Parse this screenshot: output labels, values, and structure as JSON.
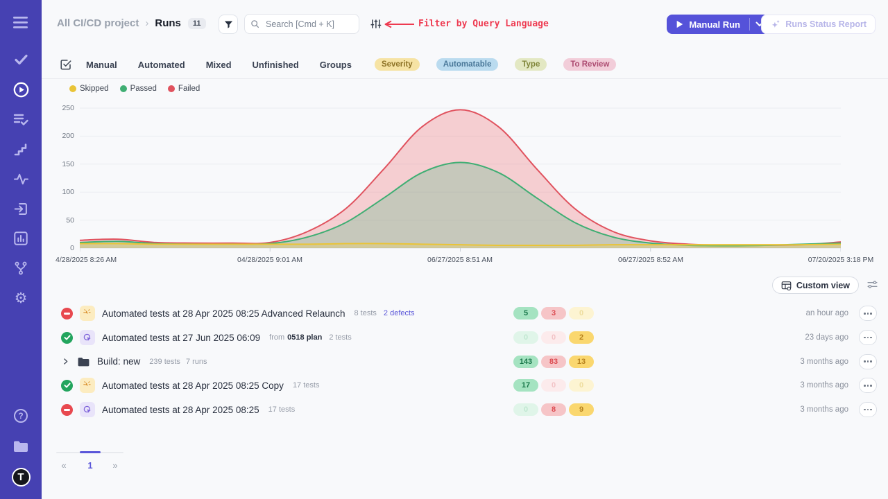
{
  "colors": {
    "sidebar_bg": "#4641b2",
    "accent": "#5552d9",
    "annotation_red": "#ee3a50",
    "passed": "#3fae73",
    "failed": "#e0525e",
    "skipped": "#e9c437"
  },
  "icons": {
    "sidebar": [
      "menu-icon",
      "tests-check-icon",
      "runs-play-circle-icon",
      "plans-list-check-icon",
      "milestones-steps-icon",
      "pulse-activity-icon",
      "import-icon",
      "analytics-bar-chart-icon",
      "git-branch-icon",
      "settings-gear-icon",
      "help-icon",
      "documentation-folder-icon",
      "app-logo"
    ],
    "header": [
      "filter-funnel-icon",
      "search-icon",
      "query-sliders-icon",
      "play-icon",
      "chevron-down-icon",
      "sparkles-icon"
    ],
    "list": [
      "status-failed-icon",
      "status-passed-icon",
      "automated-run-badge-icon",
      "plan-run-badge-icon",
      "folder-icon",
      "chevron-right-icon",
      "more-ellipsis-icon"
    ]
  },
  "sidebar": {
    "help_glyph": "?",
    "logo_glyph": "T",
    "gear_glyph": "⚙"
  },
  "header": {
    "project": "All CI/CD project",
    "separator": "›",
    "page": "Runs",
    "count": "11",
    "search_placeholder": "Search [Cmd + K]",
    "annotation": "Filter by Query Language",
    "manual_run": "Manual Run",
    "report": "Runs Status Report"
  },
  "tabs": {
    "items": [
      "Manual",
      "Automated",
      "Mixed",
      "Unfinished",
      "Groups"
    ],
    "tags": [
      {
        "label": "Severity",
        "bg": "#f6e3a4",
        "color": "#8d7226"
      },
      {
        "label": "Automatable",
        "bg": "#badbef",
        "color": "#4a7899"
      },
      {
        "label": "Type",
        "bg": "#e3e8c3",
        "color": "#7f8539"
      },
      {
        "label": "To Review",
        "bg": "#f2cdd9",
        "color": "#ad4d72"
      }
    ]
  },
  "chart_data": {
    "type": "area",
    "legend_position": "top-left",
    "grid": true,
    "legend": [
      {
        "label": "Skipped",
        "color": "#e9c437"
      },
      {
        "label": "Passed",
        "color": "#3fae73"
      },
      {
        "label": "Failed",
        "color": "#e0525e"
      }
    ],
    "ylim": [
      0,
      250
    ],
    "yticks": [
      250,
      200,
      150,
      100,
      50,
      0
    ],
    "xticks": [
      "4/28/2025 8:26 AM",
      "04/28/2025 9:01 AM",
      "06/27/2025 8:51 AM",
      "06/27/2025 8:52 AM",
      "07/20/2025 3:18 PM"
    ],
    "x": [
      0,
      0.05,
      0.1,
      0.15,
      0.2,
      0.25,
      0.3,
      0.35,
      0.4,
      0.45,
      0.5,
      0.55,
      0.6,
      0.65,
      0.7,
      0.75,
      0.8,
      0.85,
      0.9,
      0.95,
      1
    ],
    "series": [
      {
        "name": "Skipped",
        "color": "#e9c437",
        "fill": "#f3d04e",
        "values": [
          8,
          8,
          7,
          7,
          7,
          7,
          7,
          8,
          8,
          7,
          6,
          5,
          5,
          5,
          6,
          6,
          6,
          6,
          6,
          6,
          7
        ]
      },
      {
        "name": "Passed",
        "color": "#3fae73",
        "fill": "#58b887",
        "values": [
          10,
          12,
          8,
          7,
          7,
          8,
          20,
          46,
          90,
          135,
          153,
          135,
          90,
          46,
          20,
          9,
          5,
          4,
          5,
          7,
          9
        ]
      },
      {
        "name": "Failed",
        "color": "#e0525e",
        "fill": "#ed6a70",
        "values": [
          14,
          16,
          10,
          9,
          9,
          10,
          30,
          71,
          142,
          217,
          247,
          217,
          142,
          71,
          30,
          13,
          7,
          5,
          5,
          6,
          11
        ]
      }
    ]
  },
  "toolbar": {
    "custom_view": "Custom view"
  },
  "list": {
    "rows": [
      {
        "status": "failed",
        "badge": "automated",
        "title": "Automated tests at 28 Apr 2025 08:25 Advanced Relaunch",
        "tests": "8 tests",
        "defects": "2 defects",
        "pills": [
          {
            "v": "5",
            "s": "on"
          },
          {
            "v": "3",
            "s": "on"
          },
          {
            "v": "0",
            "s": "off"
          }
        ],
        "time": "an hour ago"
      },
      {
        "status": "passed",
        "badge": "plan",
        "title": "Automated tests at 27 Jun 2025 06:09",
        "from": "from",
        "plan": "0518 plan",
        "tests": "2 tests",
        "pills": [
          {
            "v": "0",
            "s": "off"
          },
          {
            "v": "0",
            "s": "off"
          },
          {
            "v": "2",
            "s": "on"
          }
        ],
        "time": "23 days ago"
      },
      {
        "type": "group",
        "title": "Build: new",
        "tests": "239 tests",
        "runs": "7 runs",
        "pills": [
          {
            "v": "143",
            "s": "on"
          },
          {
            "v": "83",
            "s": "on"
          },
          {
            "v": "13",
            "s": "on"
          }
        ],
        "time": "3 months ago"
      },
      {
        "status": "passed",
        "badge": "automated",
        "title": "Automated tests at 28 Apr 2025 08:25 Copy",
        "tests": "17 tests",
        "pills": [
          {
            "v": "17",
            "s": "on"
          },
          {
            "v": "0",
            "s": "off"
          },
          {
            "v": "0",
            "s": "off"
          }
        ],
        "time": "3 months ago"
      },
      {
        "status": "failed",
        "badge": "plan",
        "title": "Automated tests at 28 Apr 2025 08:25",
        "tests": "17 tests",
        "pills": [
          {
            "v": "0",
            "s": "off"
          },
          {
            "v": "8",
            "s": "on"
          },
          {
            "v": "9",
            "s": "on"
          }
        ],
        "time": "3 months ago"
      }
    ]
  },
  "pagination": {
    "prev": "«",
    "page": "1",
    "next": "»"
  }
}
